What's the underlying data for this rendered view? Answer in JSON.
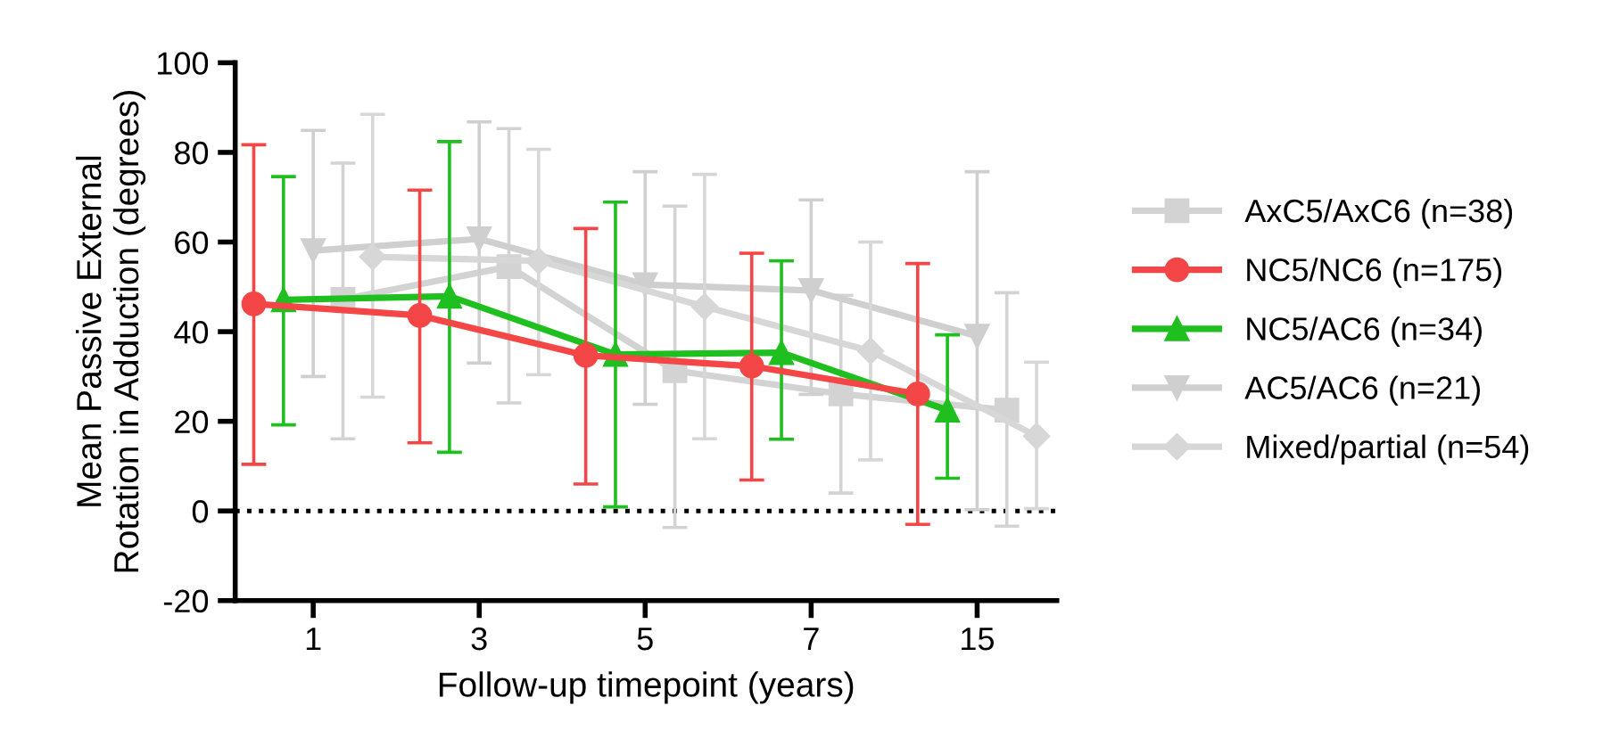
{
  "chart_data": {
    "type": "line",
    "xlabel": "Follow-up timepoint (years)",
    "ylabel": "Mean Passive External\nRotation in Adduction (degrees)",
    "categories": [
      "1",
      "3",
      "5",
      "7",
      "15"
    ],
    "ylim": [
      -20,
      100
    ],
    "yticks": [
      -20,
      0,
      20,
      40,
      60,
      80,
      100
    ],
    "grid": false,
    "legend": "right",
    "ref_lines": [
      {
        "axis": "y",
        "value": 0,
        "color": "#000000",
        "line_style": "dotted"
      }
    ],
    "series": [
      {
        "name": "AxC5/AxC6 (n=38)",
        "color": "#d3d3d3",
        "marker": "square",
        "values": [
          47.2,
          54.5,
          31.3,
          26.1,
          22.5
        ],
        "errors": [
          [
            16.1,
            77.6
          ],
          [
            24.1,
            85.3
          ],
          [
            -3.7,
            68
          ],
          [
            4,
            48.1
          ],
          [
            -3.4,
            48.7
          ]
        ]
      },
      {
        "name": "NC5/NC6 (n=175)",
        "color": "#f44646",
        "marker": "circle",
        "values": [
          46.2,
          43.6,
          34.7,
          32.3,
          26.1
        ],
        "errors": [
          [
            10.4,
            81.7
          ],
          [
            15.2,
            71.6
          ],
          [
            6,
            63
          ],
          [
            6.9,
            57.5
          ],
          [
            -3,
            55.2
          ]
        ]
      },
      {
        "name": "NC5/AC6 (n=34)",
        "color": "#1fbf1f",
        "marker": "triangle",
        "values": [
          47.1,
          47.9,
          34.9,
          35.3,
          22.5
        ],
        "errors": [
          [
            19.2,
            74.6
          ],
          [
            13.1,
            82.4
          ],
          [
            0.9,
            68.9
          ],
          [
            16,
            55.8
          ],
          [
            7.3,
            39.3
          ]
        ]
      },
      {
        "name": "AC5/AC6 (n=21)",
        "color": "#cfcfcf",
        "marker": "triangle",
        "values": [
          58.1,
          60.7,
          50.5,
          49.2,
          39
        ],
        "errors": [
          [
            30,
            84.9
          ],
          [
            33,
            86.8
          ],
          [
            23.8,
            75.7
          ],
          [
            26,
            69.4
          ],
          [
            0.3,
            75.7
          ]
        ]
      },
      {
        "name": "Mixed/partial (n=54)",
        "color": "#d7d7d7",
        "marker": "diamond",
        "values": [
          56.7,
          55.8,
          45.6,
          35.7,
          16.7
        ],
        "errors": [
          [
            25.4,
            88.5
          ],
          [
            30.4,
            80.7
          ],
          [
            16.1,
            75.1
          ],
          [
            11.4,
            60
          ],
          [
            0.5,
            33.2
          ]
        ]
      }
    ]
  }
}
